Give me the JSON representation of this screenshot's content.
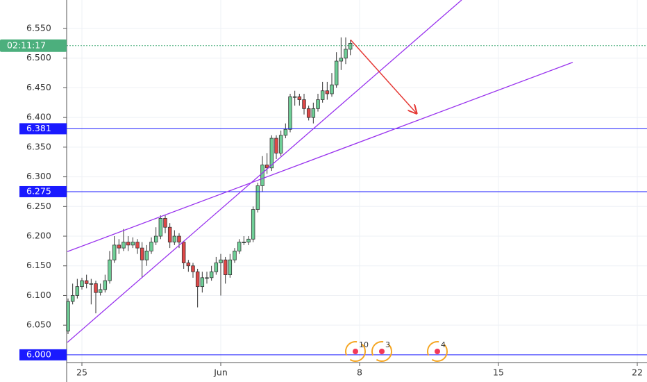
{
  "chart_data": {
    "type": "candlestick",
    "x": [
      0,
      1,
      2,
      3,
      4,
      5,
      6,
      7,
      8,
      9,
      10,
      11,
      12,
      13,
      14,
      15,
      16,
      17,
      18,
      19,
      20,
      21,
      22,
      23,
      24,
      25,
      26,
      27,
      28,
      29,
      30,
      31,
      32,
      33,
      34,
      35,
      36,
      37,
      38,
      39,
      40,
      41,
      42,
      43,
      44,
      45,
      46,
      47,
      48,
      49,
      50,
      51,
      52,
      53,
      54,
      55,
      56,
      57,
      58,
      59,
      60,
      61
    ],
    "open": [
      6.04,
      6.09,
      6.1,
      6.115,
      6.125,
      6.12,
      6.12,
      6.105,
      6.11,
      6.125,
      6.16,
      6.185,
      6.18,
      6.19,
      6.185,
      6.19,
      6.18,
      6.16,
      6.175,
      6.19,
      6.2,
      6.23,
      6.215,
      6.19,
      6.2,
      6.19,
      6.155,
      6.15,
      6.14,
      6.115,
      6.13,
      6.13,
      6.14,
      6.155,
      6.16,
      6.135,
      6.16,
      6.175,
      6.19,
      6.19,
      6.195,
      6.245,
      6.285,
      6.32,
      6.315,
      6.365,
      6.34,
      6.37,
      6.38,
      6.435,
      6.435,
      6.43,
      6.415,
      6.4,
      6.415,
      6.43,
      6.445,
      6.44,
      6.455,
      6.495,
      6.5,
      6.515
    ],
    "high": [
      6.095,
      6.12,
      6.128,
      6.13,
      6.135,
      6.128,
      6.125,
      6.12,
      6.135,
      6.175,
      6.2,
      6.195,
      6.212,
      6.2,
      6.198,
      6.195,
      6.19,
      6.185,
      6.198,
      6.215,
      6.235,
      6.235,
      6.222,
      6.21,
      6.205,
      6.192,
      6.16,
      6.155,
      6.145,
      6.14,
      6.14,
      6.15,
      6.165,
      6.17,
      6.165,
      6.17,
      6.18,
      6.195,
      6.2,
      6.2,
      6.25,
      6.29,
      6.335,
      6.34,
      6.37,
      6.37,
      6.378,
      6.39,
      6.44,
      6.445,
      6.44,
      6.44,
      6.42,
      6.425,
      6.44,
      6.46,
      6.46,
      6.475,
      6.51,
      6.535,
      6.535,
      6.53
    ],
    "low": [
      6.035,
      6.085,
      6.095,
      6.11,
      6.112,
      6.085,
      6.07,
      6.1,
      6.105,
      6.12,
      6.155,
      6.17,
      6.175,
      6.175,
      6.18,
      6.17,
      6.13,
      6.15,
      6.17,
      6.185,
      6.195,
      6.205,
      6.18,
      6.185,
      6.18,
      6.145,
      6.14,
      6.13,
      6.08,
      6.105,
      6.12,
      6.125,
      6.135,
      6.1,
      6.12,
      6.13,
      6.155,
      6.17,
      6.185,
      6.185,
      6.19,
      6.24,
      6.275,
      6.305,
      6.31,
      6.33,
      6.335,
      6.365,
      6.375,
      6.42,
      6.42,
      6.405,
      6.395,
      6.39,
      6.41,
      6.425,
      6.43,
      6.435,
      6.45,
      6.48,
      6.49,
      6.505
    ],
    "close": [
      6.09,
      6.1,
      6.115,
      6.125,
      6.12,
      6.12,
      6.105,
      6.11,
      6.125,
      6.16,
      6.185,
      6.18,
      6.19,
      6.185,
      6.19,
      6.18,
      6.16,
      6.175,
      6.19,
      6.2,
      6.23,
      6.215,
      6.19,
      6.2,
      6.19,
      6.155,
      6.15,
      6.14,
      6.115,
      6.13,
      6.13,
      6.14,
      6.155,
      6.16,
      6.135,
      6.16,
      6.175,
      6.19,
      6.19,
      6.195,
      6.245,
      6.285,
      6.32,
      6.315,
      6.365,
      6.34,
      6.37,
      6.38,
      6.435,
      6.435,
      6.43,
      6.415,
      6.4,
      6.415,
      6.43,
      6.445,
      6.44,
      6.455,
      6.495,
      6.5,
      6.515,
      6.525
    ],
    "up_color": "#6fcf97",
    "down_color": "#e04848",
    "xlim": [
      -0.3,
      125.1
    ],
    "xticks": [
      {
        "value": 3,
        "label": "25"
      },
      {
        "value": 33,
        "label": "Jun"
      },
      {
        "value": 63,
        "label": "8"
      },
      {
        "value": 93,
        "label": "15"
      },
      {
        "value": 123,
        "label": "22"
      }
    ],
    "ylim": [
      5.987,
      6.598
    ],
    "yticks": [
      {
        "value": 6.05,
        "label": "6.050"
      },
      {
        "value": 6.1,
        "label": "6.100"
      },
      {
        "value": 6.15,
        "label": "6.150"
      },
      {
        "value": 6.2,
        "label": "6.200"
      },
      {
        "value": 6.25,
        "label": "6.250"
      },
      {
        "value": 6.3,
        "label": "6.300"
      },
      {
        "value": 6.35,
        "label": "6.350"
      },
      {
        "value": 6.4,
        "label": "6.400"
      },
      {
        "value": 6.45,
        "label": "6.450"
      },
      {
        "value": 6.5,
        "label": "6.500"
      },
      {
        "value": 6.55,
        "label": "6.550"
      }
    ],
    "grid": true,
    "levels": [
      6.381,
      6.275,
      {
        "value": 6,
        "label": "6.000"
      }
    ],
    "level_color": "#1a1aff",
    "price_line": {
      "value": 6.521,
      "label": "02:11:17",
      "color": "#4caf7d"
    },
    "trendlines": [
      {
        "x": [
          -0.15,
          85.05
        ],
        "values": [
          6.021,
          6.598
        ],
        "color": "#9933ee"
      },
      {
        "x": [
          -0.15,
          109.05
        ],
        "values": [
          6.174,
          6.493
        ],
        "color": "#9933ee"
      }
    ],
    "arrow": {
      "x": [
        61.05,
        75.3
      ],
      "values": [
        6.531,
        6.407
      ],
      "color": "#e53935"
    },
    "events": [
      {
        "x": 62.1,
        "label": "10"
      },
      {
        "x": 67.8,
        "label": "3"
      },
      {
        "x": 79.8,
        "label": "4"
      }
    ]
  }
}
